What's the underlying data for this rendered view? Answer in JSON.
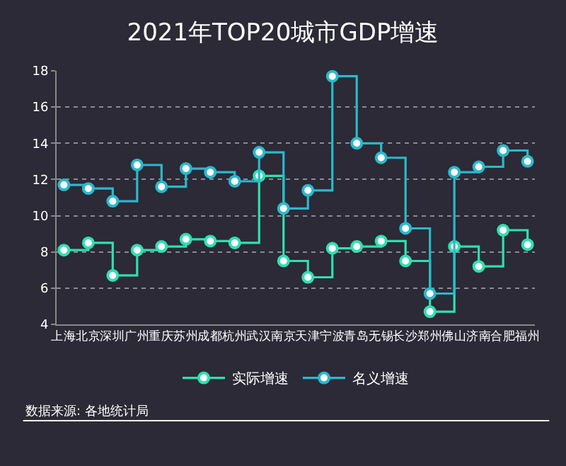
{
  "chart_data": {
    "type": "step",
    "title": "2021年TOP20城市GDP增速",
    "categories": [
      "上海",
      "北京",
      "深圳",
      "广州",
      "重庆",
      "苏州",
      "成都",
      "杭州",
      "武汉",
      "南京",
      "天津",
      "宁波",
      "青岛",
      "无锡",
      "长沙",
      "郑州",
      "佛山",
      "济南",
      "合肥",
      "福州"
    ],
    "series": [
      {
        "name": "实际增速",
        "color": "#2ee0b0",
        "values": [
          8.1,
          8.5,
          6.7,
          8.1,
          8.3,
          8.7,
          8.6,
          8.5,
          12.2,
          7.5,
          6.6,
          8.2,
          8.3,
          8.6,
          7.5,
          4.7,
          8.3,
          7.2,
          9.2,
          8.4
        ]
      },
      {
        "name": "名义增速",
        "color": "#2bb8cc",
        "values": [
          11.7,
          11.5,
          10.8,
          12.8,
          11.6,
          12.6,
          12.4,
          11.9,
          13.5,
          10.4,
          11.4,
          17.7,
          14.0,
          13.2,
          9.3,
          5.7,
          12.4,
          12.7,
          13.6,
          13.0
        ]
      }
    ],
    "ylim": [
      4,
      18
    ],
    "yticks": [
      4,
      6,
      8,
      10,
      12,
      14,
      16,
      18
    ],
    "grid": "y",
    "legend": "bottom",
    "marker": "circle",
    "line_style": "solid",
    "annotations": [
      "数据来源: 各地统计局"
    ]
  }
}
